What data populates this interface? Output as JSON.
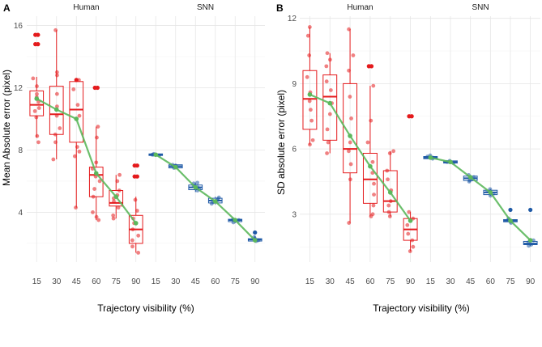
{
  "chart_data": [
    {
      "type": "box",
      "panel_label": "A",
      "ylabel": "Mean Absolute error (pixel)",
      "xlabel": "Trajectory visibility (%)",
      "facets": [
        "Human",
        "SNN"
      ],
      "categories": [
        "15",
        "30",
        "45",
        "60",
        "75",
        "90"
      ],
      "yticks": [
        4,
        8,
        12,
        16
      ],
      "ylim": [
        0.8,
        16.6
      ],
      "grid": true,
      "trend_color": "#5cb85c",
      "series": [
        {
          "name": "Human",
          "color": "#e41a1c",
          "boxes": [
            {
              "x": "15",
              "min": 8.8,
              "q1": 10.2,
              "median": 10.9,
              "q3": 11.8,
              "max": 12.7
            },
            {
              "x": "30",
              "min": 7.4,
              "q1": 9.0,
              "median": 10.3,
              "q3": 12.1,
              "max": 15.7
            },
            {
              "x": "45",
              "min": 4.3,
              "q1": 8.5,
              "median": 10.6,
              "q3": 12.4,
              "max": 12.5
            },
            {
              "x": "60",
              "min": 3.5,
              "q1": 5.0,
              "median": 6.4,
              "q3": 6.9,
              "max": 9.5
            },
            {
              "x": "75",
              "min": 3.6,
              "q1": 4.4,
              "median": 4.6,
              "q3": 5.4,
              "max": 6.4
            },
            {
              "x": "90",
              "min": 1.4,
              "q1": 2.0,
              "median": 2.9,
              "q3": 3.8,
              "max": 5.0
            }
          ],
          "outliers": [
            {
              "x": "15",
              "values": [
                15.4,
                15.4,
                14.8,
                14.8
              ]
            },
            {
              "x": "45",
              "values": [
                12.5
              ]
            },
            {
              "x": "60",
              "values": [
                12.0,
                12.0
              ]
            },
            {
              "x": "90",
              "values": [
                7.0,
                7.0,
                6.3,
                6.3
              ]
            }
          ],
          "points": [
            {
              "x": "15",
              "values": [
                8.5,
                8.9,
                10.1,
                10.5,
                10.7,
                11.1,
                11.4,
                11.6,
                12.1,
                12.6
              ]
            },
            {
              "x": "30",
              "values": [
                7.4,
                8.5,
                9.0,
                9.4,
                10.2,
                10.8,
                11.6,
                12.8,
                13.0,
                15.7
              ]
            },
            {
              "x": "45",
              "values": [
                4.3,
                7.6,
                7.9,
                8.2,
                10.2,
                10.9,
                11.9,
                12.5
              ]
            },
            {
              "x": "60",
              "values": [
                3.5,
                3.7,
                4.0,
                5.0,
                5.5,
                6.0,
                6.3,
                6.8,
                7.2,
                8.8,
                9.5
              ]
            },
            {
              "x": "75",
              "values": [
                3.6,
                3.8,
                4.3,
                4.7,
                4.9,
                5.1,
                5.4,
                6.0,
                6.4
              ]
            },
            {
              "x": "90",
              "values": [
                1.4,
                1.8,
                2.2,
                2.5,
                2.9,
                3.3,
                3.6,
                4.1,
                4.8
              ]
            }
          ],
          "means": [
            11.3,
            10.6,
            10.0,
            6.5,
            5.0,
            3.3
          ]
        },
        {
          "name": "SNN",
          "color": "#1f5aa6",
          "boxes": [
            {
              "x": "15",
              "min": 7.6,
              "q1": 7.65,
              "median": 7.7,
              "q3": 7.75,
              "max": 7.8
            },
            {
              "x": "30",
              "min": 6.8,
              "q1": 6.85,
              "median": 6.95,
              "q3": 7.05,
              "max": 7.1
            },
            {
              "x": "45",
              "min": 5.3,
              "q1": 5.45,
              "median": 5.6,
              "q3": 5.75,
              "max": 5.9
            },
            {
              "x": "60",
              "min": 4.5,
              "q1": 4.6,
              "median": 4.75,
              "q3": 4.9,
              "max": 5.0
            },
            {
              "x": "75",
              "min": 3.3,
              "q1": 3.4,
              "median": 3.5,
              "q3": 3.55,
              "max": 3.6
            },
            {
              "x": "90",
              "min": 2.1,
              "q1": 2.15,
              "median": 2.25,
              "q3": 2.3,
              "max": 2.5
            }
          ],
          "outliers": [
            {
              "x": "90",
              "values": [
                2.7
              ]
            }
          ],
          "points": [
            {
              "x": "15",
              "values": [
                7.65,
                7.7,
                7.75,
                7.7
              ]
            },
            {
              "x": "30",
              "values": [
                6.85,
                6.9,
                7.0,
                7.05,
                6.95
              ]
            },
            {
              "x": "45",
              "values": [
                5.4,
                5.5,
                5.6,
                5.7,
                5.85,
                5.9
              ]
            },
            {
              "x": "60",
              "values": [
                4.55,
                4.65,
                4.75,
                4.85,
                4.95
              ]
            },
            {
              "x": "75",
              "values": [
                3.35,
                3.45,
                3.5,
                3.55
              ]
            },
            {
              "x": "90",
              "values": [
                2.15,
                2.2,
                2.3,
                2.4,
                2.7
              ]
            }
          ],
          "means": [
            7.7,
            6.9,
            5.6,
            4.7,
            3.5,
            2.2
          ]
        }
      ]
    },
    {
      "type": "box",
      "panel_label": "B",
      "ylabel": "SD absolute error (pixel)",
      "xlabel": "Trajectory visibility (%)",
      "facets": [
        "Human",
        "SNN"
      ],
      "categories": [
        "15",
        "30",
        "45",
        "60",
        "75",
        "90"
      ],
      "yticks": [
        3,
        6,
        9,
        12
      ],
      "ylim": [
        0.8,
        12.1
      ],
      "grid": true,
      "trend_color": "#5cb85c",
      "series": [
        {
          "name": "Human",
          "color": "#e41a1c",
          "boxes": [
            {
              "x": "15",
              "min": 6.2,
              "q1": 6.9,
              "median": 8.3,
              "q3": 9.6,
              "max": 11.6
            },
            {
              "x": "30",
              "min": 5.8,
              "q1": 6.4,
              "median": 8.4,
              "q3": 9.4,
              "max": 10.4
            },
            {
              "x": "45",
              "min": 2.6,
              "q1": 4.9,
              "median": 6.0,
              "q3": 9.0,
              "max": 11.5
            },
            {
              "x": "60",
              "min": 2.9,
              "q1": 3.5,
              "median": 4.6,
              "q3": 5.8,
              "max": 8.9
            },
            {
              "x": "75",
              "min": 2.9,
              "q1": 3.1,
              "median": 3.6,
              "q3": 5.0,
              "max": 5.9
            },
            {
              "x": "90",
              "min": 1.3,
              "q1": 1.8,
              "median": 2.3,
              "q3": 2.8,
              "max": 3.1
            }
          ],
          "outliers": [
            {
              "x": "60",
              "values": [
                9.8,
                9.8
              ]
            },
            {
              "x": "90",
              "values": [
                7.5,
                7.5
              ]
            }
          ],
          "points": [
            {
              "x": "15",
              "values": [
                6.2,
                6.4,
                7.3,
                7.8,
                8.2,
                8.6,
                9.3,
                10.3,
                11.2,
                11.6
              ]
            },
            {
              "x": "30",
              "values": [
                5.8,
                6.3,
                6.9,
                7.6,
                8.1,
                8.7,
                9.1,
                9.8,
                10.1,
                10.4
              ]
            },
            {
              "x": "45",
              "values": [
                2.6,
                4.6,
                5.3,
                5.9,
                6.3,
                7.4,
                8.4,
                9.6,
                10.3,
                11.5
              ]
            },
            {
              "x": "60",
              "values": [
                2.9,
                3.0,
                3.4,
                3.9,
                4.4,
                4.9,
                5.4,
                6.3,
                7.3,
                8.9
              ]
            },
            {
              "x": "75",
              "values": [
                2.9,
                3.1,
                3.4,
                3.6,
                4.1,
                4.6,
                5.0,
                5.8,
                5.9
              ]
            },
            {
              "x": "90",
              "values": [
                1.3,
                1.5,
                1.8,
                2.1,
                2.5,
                2.8,
                3.1
              ]
            }
          ],
          "means": [
            8.5,
            8.1,
            6.6,
            5.2,
            4.0,
            2.7
          ]
        },
        {
          "name": "SNN",
          "color": "#1f5aa6",
          "boxes": [
            {
              "x": "15",
              "min": 5.5,
              "q1": 5.55,
              "median": 5.6,
              "q3": 5.65,
              "max": 5.7
            },
            {
              "x": "30",
              "min": 5.3,
              "q1": 5.35,
              "median": 5.4,
              "q3": 5.45,
              "max": 5.5
            },
            {
              "x": "45",
              "min": 4.5,
              "q1": 4.55,
              "median": 4.65,
              "q3": 4.75,
              "max": 4.8
            },
            {
              "x": "60",
              "min": 3.85,
              "q1": 3.9,
              "median": 4.0,
              "q3": 4.1,
              "max": 4.15
            },
            {
              "x": "75",
              "min": 2.6,
              "q1": 2.65,
              "median": 2.7,
              "q3": 2.75,
              "max": 2.8
            },
            {
              "x": "90",
              "min": 1.55,
              "q1": 1.6,
              "median": 1.65,
              "q3": 1.75,
              "max": 1.8
            }
          ],
          "outliers": [
            {
              "x": "75",
              "values": [
                3.2
              ]
            },
            {
              "x": "90",
              "values": [
                3.2
              ]
            }
          ],
          "points": [
            {
              "x": "15",
              "values": [
                5.55,
                5.6,
                5.65,
                5.7,
                5.6
              ]
            },
            {
              "x": "30",
              "values": [
                5.35,
                5.4,
                5.45,
                5.4
              ]
            },
            {
              "x": "45",
              "values": [
                4.5,
                4.6,
                4.7,
                4.8,
                4.55
              ]
            },
            {
              "x": "60",
              "values": [
                3.85,
                3.95,
                4.05,
                4.15
              ]
            },
            {
              "x": "75",
              "values": [
                2.6,
                2.65,
                2.75,
                2.8
              ]
            },
            {
              "x": "90",
              "values": [
                1.55,
                1.6,
                1.7,
                1.8
              ]
            }
          ],
          "means": [
            5.6,
            5.4,
            4.7,
            4.0,
            2.7,
            1.8
          ]
        }
      ]
    }
  ]
}
